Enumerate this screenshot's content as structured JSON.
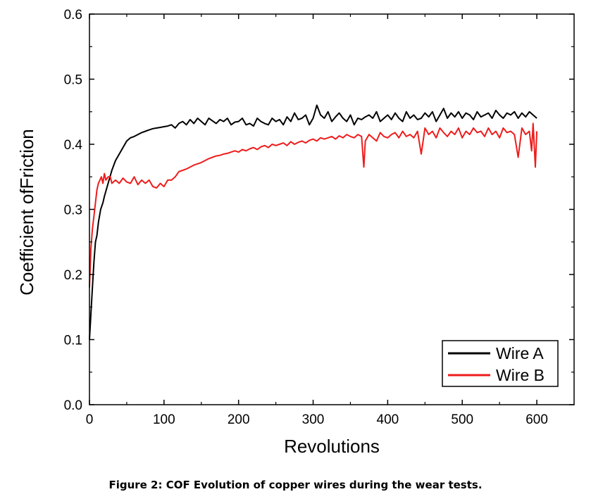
{
  "caption": "Figure 2: COF Evolution of copper wires during the wear tests.",
  "chart_data": {
    "type": "line",
    "xlabel": "Revolutions",
    "ylabel": "Coefficient ofFriction",
    "xlim": [
      0,
      650
    ],
    "ylim": [
      0,
      0.6
    ],
    "x_ticks": [
      0,
      100,
      200,
      300,
      400,
      500,
      600
    ],
    "x_tick_labels": [
      "0",
      "100",
      "200",
      "300",
      "400",
      "500",
      "600"
    ],
    "y_ticks": [
      0,
      0.1,
      0.2,
      0.3,
      0.4,
      0.5,
      0.6
    ],
    "y_tick_labels": [
      "0.0",
      "0.1",
      "0.2",
      "0.3",
      "0.4",
      "0.5",
      "0.6"
    ],
    "grid": false,
    "legend_position": "bottom-right",
    "series": [
      {
        "name": "Wire A",
        "color": "#000000",
        "x": [
          0,
          2,
          4,
          6,
          8,
          10,
          12,
          15,
          18,
          20,
          25,
          30,
          35,
          40,
          45,
          50,
          55,
          60,
          65,
          70,
          75,
          80,
          85,
          90,
          95,
          100,
          105,
          110,
          115,
          120,
          125,
          130,
          135,
          140,
          145,
          150,
          155,
          160,
          165,
          170,
          175,
          180,
          185,
          190,
          195,
          200,
          205,
          210,
          215,
          220,
          225,
          230,
          235,
          240,
          245,
          250,
          255,
          260,
          265,
          270,
          275,
          280,
          285,
          290,
          295,
          300,
          305,
          310,
          315,
          320,
          325,
          330,
          335,
          340,
          345,
          350,
          355,
          360,
          365,
          370,
          375,
          380,
          385,
          390,
          395,
          400,
          405,
          410,
          415,
          420,
          425,
          430,
          435,
          440,
          445,
          450,
          455,
          460,
          465,
          470,
          475,
          480,
          485,
          490,
          495,
          500,
          505,
          510,
          515,
          520,
          525,
          530,
          535,
          540,
          545,
          550,
          555,
          560,
          565,
          570,
          575,
          580,
          585,
          590,
          595,
          600
        ],
        "y": [
          0.1,
          0.14,
          0.18,
          0.22,
          0.25,
          0.26,
          0.28,
          0.3,
          0.31,
          0.32,
          0.34,
          0.36,
          0.375,
          0.385,
          0.395,
          0.405,
          0.41,
          0.412,
          0.415,
          0.418,
          0.42,
          0.422,
          0.424,
          0.425,
          0.426,
          0.427,
          0.428,
          0.43,
          0.425,
          0.432,
          0.435,
          0.43,
          0.438,
          0.432,
          0.44,
          0.435,
          0.43,
          0.44,
          0.436,
          0.432,
          0.438,
          0.435,
          0.44,
          0.43,
          0.434,
          0.435,
          0.44,
          0.43,
          0.432,
          0.428,
          0.44,
          0.435,
          0.432,
          0.43,
          0.44,
          0.435,
          0.438,
          0.43,
          0.442,
          0.435,
          0.448,
          0.438,
          0.44,
          0.445,
          0.43,
          0.44,
          0.46,
          0.445,
          0.44,
          0.45,
          0.435,
          0.442,
          0.448,
          0.44,
          0.435,
          0.445,
          0.43,
          0.44,
          0.438,
          0.442,
          0.445,
          0.44,
          0.45,
          0.435,
          0.44,
          0.445,
          0.438,
          0.448,
          0.44,
          0.435,
          0.45,
          0.44,
          0.445,
          0.438,
          0.44,
          0.448,
          0.442,
          0.45,
          0.435,
          0.445,
          0.455,
          0.44,
          0.448,
          0.442,
          0.45,
          0.44,
          0.448,
          0.445,
          0.438,
          0.45,
          0.442,
          0.445,
          0.448,
          0.44,
          0.452,
          0.445,
          0.44,
          0.448,
          0.445,
          0.45,
          0.44,
          0.448,
          0.442,
          0.45,
          0.445,
          0.44
        ]
      },
      {
        "name": "Wire B",
        "color": "#ee1c1c",
        "x": [
          0,
          2,
          4,
          6,
          8,
          10,
          12,
          14,
          16,
          18,
          20,
          22,
          25,
          28,
          30,
          35,
          40,
          45,
          50,
          55,
          60,
          65,
          70,
          75,
          80,
          85,
          90,
          95,
          100,
          105,
          110,
          115,
          120,
          125,
          130,
          135,
          140,
          145,
          150,
          155,
          160,
          165,
          170,
          175,
          180,
          185,
          190,
          195,
          200,
          205,
          210,
          215,
          220,
          225,
          230,
          235,
          240,
          245,
          250,
          255,
          260,
          265,
          270,
          275,
          280,
          285,
          290,
          295,
          300,
          305,
          310,
          315,
          320,
          325,
          330,
          335,
          340,
          345,
          350,
          355,
          360,
          365,
          368,
          370,
          375,
          380,
          385,
          390,
          395,
          400,
          405,
          410,
          415,
          420,
          425,
          430,
          435,
          440,
          445,
          450,
          455,
          460,
          465,
          470,
          475,
          480,
          485,
          490,
          495,
          500,
          505,
          510,
          515,
          520,
          525,
          530,
          535,
          540,
          545,
          550,
          555,
          560,
          565,
          570,
          575,
          580,
          585,
          590,
          593,
          595,
          598,
          600
        ],
        "y": [
          0.18,
          0.24,
          0.27,
          0.29,
          0.31,
          0.33,
          0.34,
          0.345,
          0.35,
          0.34,
          0.355,
          0.345,
          0.35,
          0.35,
          0.34,
          0.345,
          0.34,
          0.348,
          0.342,
          0.34,
          0.35,
          0.338,
          0.345,
          0.34,
          0.345,
          0.335,
          0.333,
          0.34,
          0.335,
          0.345,
          0.345,
          0.35,
          0.358,
          0.36,
          0.362,
          0.365,
          0.368,
          0.37,
          0.372,
          0.375,
          0.378,
          0.38,
          0.382,
          0.383,
          0.385,
          0.386,
          0.388,
          0.39,
          0.388,
          0.392,
          0.39,
          0.393,
          0.395,
          0.392,
          0.396,
          0.398,
          0.395,
          0.4,
          0.398,
          0.4,
          0.402,
          0.398,
          0.404,
          0.4,
          0.403,
          0.405,
          0.402,
          0.406,
          0.408,
          0.405,
          0.41,
          0.408,
          0.41,
          0.412,
          0.408,
          0.413,
          0.41,
          0.415,
          0.412,
          0.41,
          0.415,
          0.412,
          0.365,
          0.405,
          0.415,
          0.41,
          0.405,
          0.418,
          0.412,
          0.41,
          0.415,
          0.418,
          0.41,
          0.42,
          0.412,
          0.415,
          0.41,
          0.42,
          0.385,
          0.425,
          0.415,
          0.42,
          0.41,
          0.425,
          0.418,
          0.412,
          0.42,
          0.415,
          0.425,
          0.41,
          0.42,
          0.415,
          0.425,
          0.418,
          0.42,
          0.412,
          0.425,
          0.415,
          0.42,
          0.41,
          0.425,
          0.418,
          0.42,
          0.415,
          0.38,
          0.425,
          0.415,
          0.42,
          0.39,
          0.432,
          0.365,
          0.42
        ]
      }
    ]
  }
}
